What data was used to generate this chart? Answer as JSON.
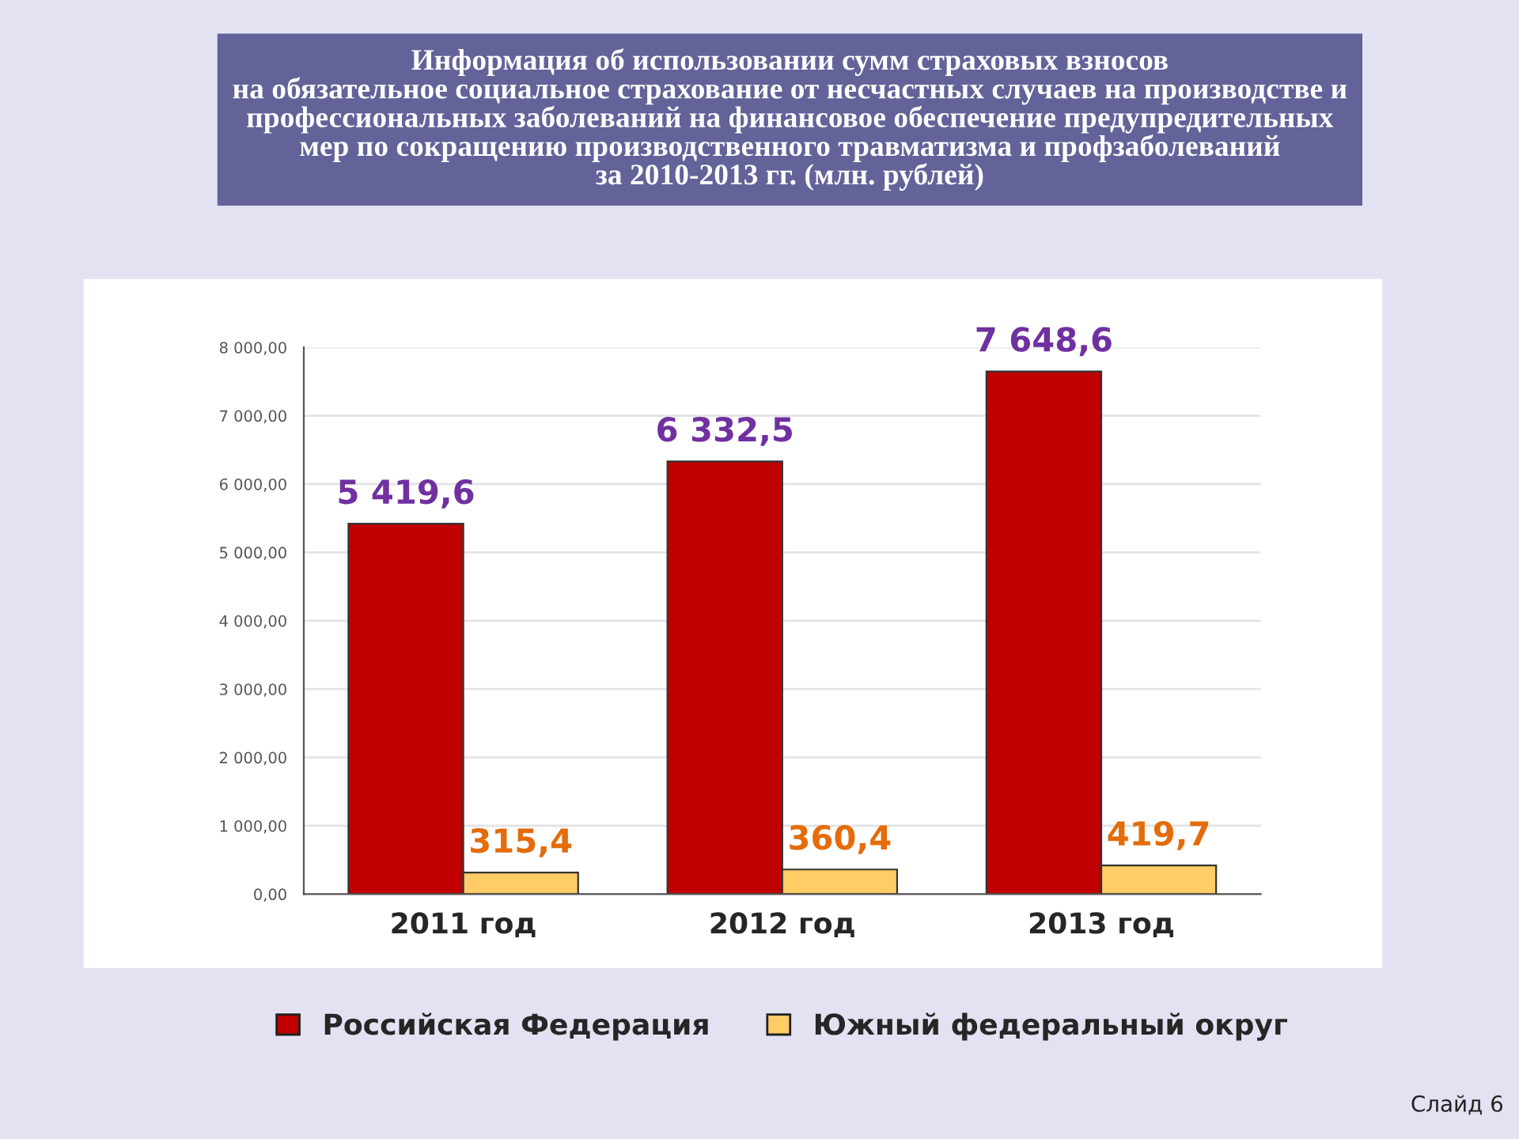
{
  "chart_data": {
    "type": "bar",
    "title": "Информация об использовании сумм страховых взносов\nна обязательное социальное страхование от несчастных случаев на производстве и\nпрофессиональных заболеваний на финансовое обеспечение предупредительных\nмер по сокращению производственного травматизма и профзаболеваний\nза 2010-2013 гг. (млн. рублей)",
    "categories": [
      "2011 год",
      "2012 год",
      "2013 год"
    ],
    "series": [
      {
        "name": "Российская Федерация",
        "color": "#c00000",
        "values": [
          5419.6,
          6332.5,
          7648.6
        ],
        "value_labels": [
          "5 419,6",
          "6 332,5",
          "7 648,6"
        ]
      },
      {
        "name": "Южный федеральный округ",
        "color": "#ffcc66",
        "values": [
          315.4,
          360.4,
          419.7
        ],
        "value_labels": [
          "315,4",
          "360,4",
          "419,7"
        ]
      }
    ],
    "ylim": [
      0,
      8000
    ],
    "yticks": [
      {
        "value": 0,
        "label": "0,00"
      },
      {
        "value": 1000,
        "label": "1 000,00"
      },
      {
        "value": 2000,
        "label": "2 000,00"
      },
      {
        "value": 3000,
        "label": "3 000,00"
      },
      {
        "value": 4000,
        "label": "4 000,00"
      },
      {
        "value": 5000,
        "label": "5 000,00"
      },
      {
        "value": 6000,
        "label": "6 000,00"
      },
      {
        "value": 7000,
        "label": "7 000,00"
      },
      {
        "value": 8000,
        "label": "8 000,00"
      }
    ],
    "grid": "y",
    "legend": "bottom",
    "annotations": [
      "Слайд 6"
    ]
  }
}
